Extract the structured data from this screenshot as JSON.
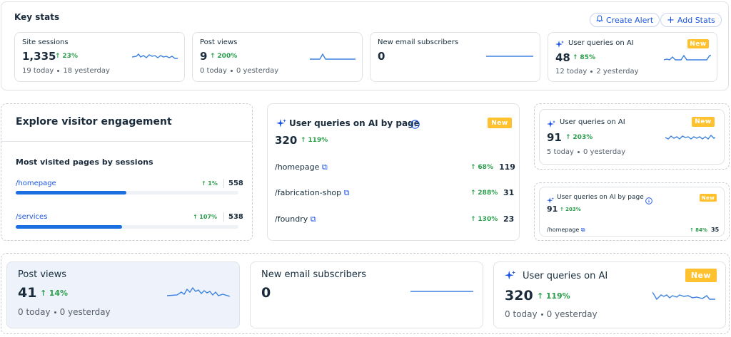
{
  "key_stats": {
    "title": "Key stats",
    "create_alert": "Create Alert",
    "add_stats": "Add Stats",
    "cards": [
      {
        "title": "Site sessions",
        "value": "1,335",
        "change": "23%",
        "today": "19 today",
        "yesterday": "18 yesterday"
      },
      {
        "title": "Post views",
        "value": "9",
        "change": "200%",
        "today": "0 today",
        "yesterday": "0 yesterday"
      },
      {
        "title": "New email subscribers",
        "value": "0"
      },
      {
        "title": "User queries on AI",
        "value": "48",
        "change": "85%",
        "today": "12 today",
        "yesterday": "2 yesterday",
        "badge": "New"
      }
    ]
  },
  "engagement": {
    "title": "Explore visitor engagement",
    "subtitle": "Most visited pages by sessions",
    "rows": [
      {
        "page": "/homepage",
        "change": "1%",
        "value": "558",
        "fill": 0.5
      },
      {
        "page": "/services",
        "change": "107%",
        "value": "538",
        "fill": 0.48
      }
    ]
  },
  "ai_by_page": {
    "title": "User queries on AI by page",
    "badge": "New",
    "value": "320",
    "change": "119%",
    "rows": [
      {
        "page": "/homepage",
        "change": "68%",
        "value": "119"
      },
      {
        "page": "/fabrication-shop",
        "change": "288%",
        "value": "31"
      },
      {
        "page": "/foundry",
        "change": "130%",
        "value": "23"
      }
    ]
  },
  "ai_small": {
    "title": "User queries on AI",
    "badge": "New",
    "value": "91",
    "change": "203%",
    "today": "5 today",
    "yesterday": "0 yesterday"
  },
  "ai_page_small": {
    "title": "User queries on AI by page",
    "badge": "New",
    "value": "91",
    "change": "203%",
    "row": {
      "page": "/homepage",
      "change": "84%",
      "value": "35"
    }
  },
  "bottom": [
    {
      "title": "Post views",
      "value": "41",
      "change": "14%",
      "today": "0 today",
      "yesterday": "0 yesterday"
    },
    {
      "title": "New email subscribers",
      "value": "0"
    },
    {
      "title": "User queries on AI",
      "value": "320",
      "change": "119%",
      "today": "0 today",
      "yesterday": "0 yesterday",
      "badge": "New"
    }
  ]
}
